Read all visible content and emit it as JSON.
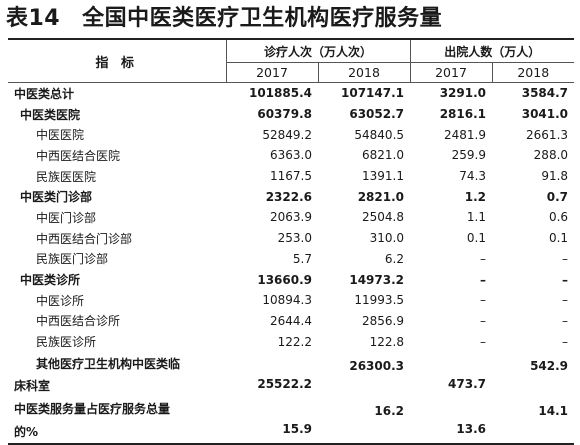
{
  "title": {
    "number": "表14",
    "text": "全国中医类医疗卫生机构医疗服务量"
  },
  "header": {
    "indicator": "指 标",
    "visits": "诊疗人次（万人次）",
    "discharged": "出院人数（万人）",
    "years": [
      "2017",
      "2018",
      "2017",
      "2018"
    ]
  },
  "rows": [
    {
      "name": "中医类总计",
      "level": 0,
      "bold": true,
      "values": [
        "101885.4",
        "107147.1",
        "3291.0",
        "3584.7"
      ]
    },
    {
      "name": "中医类医院",
      "level": 1,
      "bold": true,
      "values": [
        "60379.8",
        "63052.7",
        "2816.1",
        "3041.0"
      ]
    },
    {
      "name": "中医医院",
      "level": 2,
      "bold": false,
      "values": [
        "52849.2",
        "54840.5",
        "2481.9",
        "2661.3"
      ]
    },
    {
      "name": "中西医结合医院",
      "level": 2,
      "bold": false,
      "values": [
        "6363.0",
        "6821.0",
        "259.9",
        "288.0"
      ]
    },
    {
      "name": "民族医医院",
      "level": 2,
      "bold": false,
      "values": [
        "1167.5",
        "1391.1",
        "74.3",
        "91.8"
      ]
    },
    {
      "name": "中医类门诊部",
      "level": 1,
      "bold": true,
      "values": [
        "2322.6",
        "2821.0",
        "1.2",
        "0.7"
      ]
    },
    {
      "name": "中医门诊部",
      "level": 2,
      "bold": false,
      "values": [
        "2063.9",
        "2504.8",
        "1.1",
        "0.6"
      ]
    },
    {
      "name": "中西医结合门诊部",
      "level": 2,
      "bold": false,
      "values": [
        "253.0",
        "310.0",
        "0.1",
        "0.1"
      ]
    },
    {
      "name": "民族医门诊部",
      "level": 2,
      "bold": false,
      "values": [
        "5.7",
        "6.2",
        "–",
        "–"
      ]
    },
    {
      "name": "中医类诊所",
      "level": 1,
      "bold": true,
      "values": [
        "13660.9",
        "14973.2",
        "–",
        "–"
      ]
    },
    {
      "name": "中医诊所",
      "level": 2,
      "bold": false,
      "values": [
        "10894.3",
        "11993.5",
        "–",
        "–"
      ]
    },
    {
      "name": "中西医结合诊所",
      "level": 2,
      "bold": false,
      "values": [
        "2644.4",
        "2856.9",
        "–",
        "–"
      ]
    },
    {
      "name": "民族医诊所",
      "level": 2,
      "bold": false,
      "values": [
        "122.2",
        "122.8",
        "–",
        "–"
      ]
    }
  ],
  "other_row": {
    "name_line1": "其他医疗卫生机构中医类临",
    "name_line2": "床科室",
    "values": [
      "25522.2",
      "26300.3",
      "473.7",
      "542.9"
    ]
  },
  "share_row": {
    "name_line1": "中医类服务量占医疗服务总量",
    "name_line2": "的%",
    "values": [
      "15.9",
      "16.2",
      "13.6",
      "14.1"
    ]
  }
}
